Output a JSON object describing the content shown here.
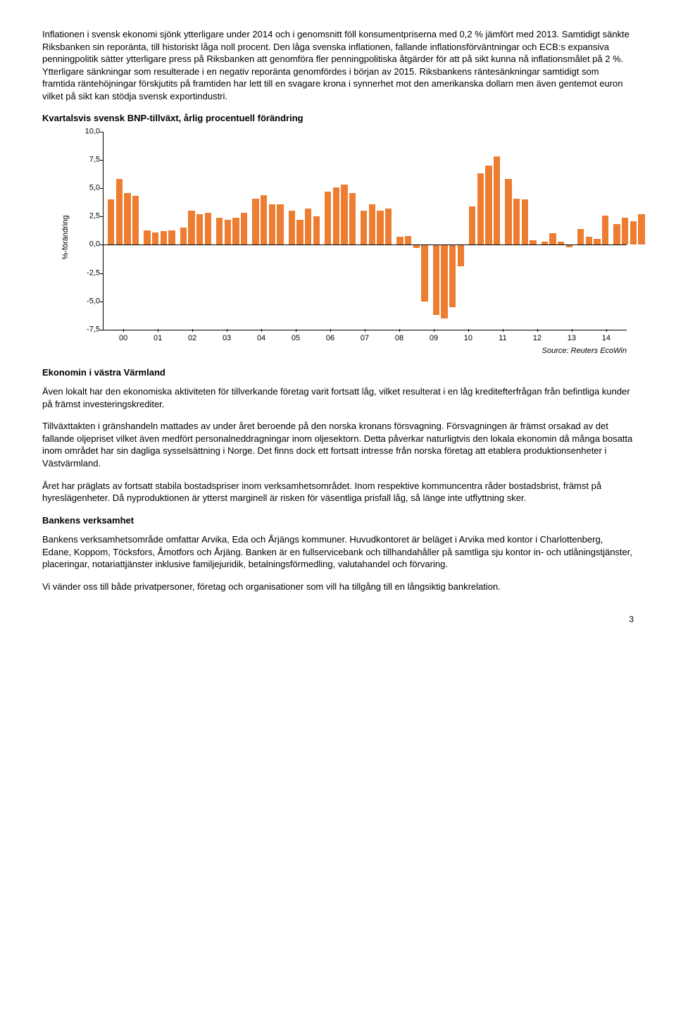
{
  "paragraphs": {
    "p1": "Inflationen i svensk ekonomi sjönk ytterligare under 2014 och i genomsnitt föll konsumentpriserna med 0,2 % jämfört med 2013. Samtidigt sänkte Riksbanken sin reporänta, till historiskt låga noll procent. Den låga svenska inflationen, fallande inflationsförväntningar och ECB:s expansiva penningpolitik sätter ytterligare press på Riksbanken att genomföra fler penningpolitiska åtgärder för att på sikt kunna nå inflationsmålet på 2 %. Ytterligare sänkningar som resulterade i en negativ reporänta genomfördes i början av 2015. Riksbankens räntesänkningar samtidigt som framtida räntehöjningar förskjutits på framtiden har lett till en svagare krona i synnerhet mot den amerikanska dollarn men även gentemot euron vilket på sikt kan stödja svensk exportindustri.",
    "p2": "Även lokalt har den ekonomiska aktiviteten för tillverkande företag varit fortsatt låg, vilket resulterat i en låg kreditefterfrågan från befintliga kunder på främst investeringskrediter.",
    "p3": "Tillväxttakten i gränshandeln mattades av under året beroende på den norska kronans försvagning. Försvagningen är främst orsakad av det fallande oljepriset vilket även medfört personalneddragningar inom oljesektorn. Detta påverkar naturligtvis den lokala ekonomin då många bosatta inom området har sin dagliga sysselsättning i Norge. Det finns dock ett fortsatt intresse från norska företag att etablera produktionsenheter i Västvärmland.",
    "p4": "Året har präglats av fortsatt stabila bostadspriser inom verksamhetsområdet. Inom respektive kommuncentra råder bostadsbrist, främst på hyreslägenheter. Då nyproduktionen är ytterst marginell är risken för väsentliga prisfall låg, så länge inte utflyttning sker.",
    "p5": "Bankens verksamhetsområde omfattar Arvika, Eda och Årjängs kommuner. Huvudkontoret är beläget i Arvika med kontor i Charlottenberg, Edane, Koppom, Töcksfors, Åmotfors och Årjäng. Banken är en fullservicebank och tillhandahåller på samtliga sju kontor in- och utlåningstjänster, placeringar, notariattjänster inklusive familjejuridik, betalningsförmedling, valutahandel och förvaring.",
    "p6": "Vi vänder oss till både privatpersoner, företag och organisationer som vill ha tillgång till en långsiktig bankrelation."
  },
  "headings": {
    "chart_title": "Kvartalsvis svensk BNP-tillväxt, årlig procentuell förändring",
    "ekonomin": "Ekonomin i västra Värmland",
    "bankens": "Bankens verksamhet"
  },
  "chart": {
    "type": "bar",
    "ylabel": "%-förändring",
    "ylim_min": -7.5,
    "ylim_max": 10.0,
    "yticks": [
      10.0,
      7.5,
      5.0,
      2.5,
      0.0,
      -2.5,
      -5.0,
      -7.5
    ],
    "ytick_labels": [
      "10,0",
      "7,5",
      "5,0",
      "2,5",
      "0,0",
      "-2,5",
      "-5,0",
      "-7,5"
    ],
    "x_years": [
      "00",
      "01",
      "02",
      "03",
      "04",
      "05",
      "06",
      "07",
      "08",
      "09",
      "10",
      "11",
      "12",
      "13",
      "14"
    ],
    "values": [
      4.0,
      5.8,
      4.6,
      4.3,
      1.3,
      1.1,
      1.2,
      1.3,
      1.5,
      3.0,
      2.7,
      2.8,
      2.4,
      2.2,
      2.4,
      2.8,
      4.1,
      4.4,
      3.6,
      3.6,
      3.0,
      2.2,
      3.2,
      2.5,
      4.7,
      5.1,
      5.3,
      4.6,
      3.0,
      3.6,
      3.0,
      3.2,
      0.7,
      0.8,
      -0.3,
      -5.0,
      -6.2,
      -6.5,
      -5.5,
      -1.9,
      3.4,
      6.3,
      7.0,
      7.8,
      5.8,
      4.1,
      4.0,
      0.4,
      0.3,
      1.0,
      0.3,
      -0.2,
      1.4,
      0.7,
      0.5,
      2.6,
      1.8,
      2.4,
      2.1,
      2.7
    ],
    "bar_color": "#ed7d31",
    "bg_color": "#ffffff",
    "axis_color": "#000000"
  },
  "source": "Source: Reuters EcoWin",
  "page_number": "3"
}
